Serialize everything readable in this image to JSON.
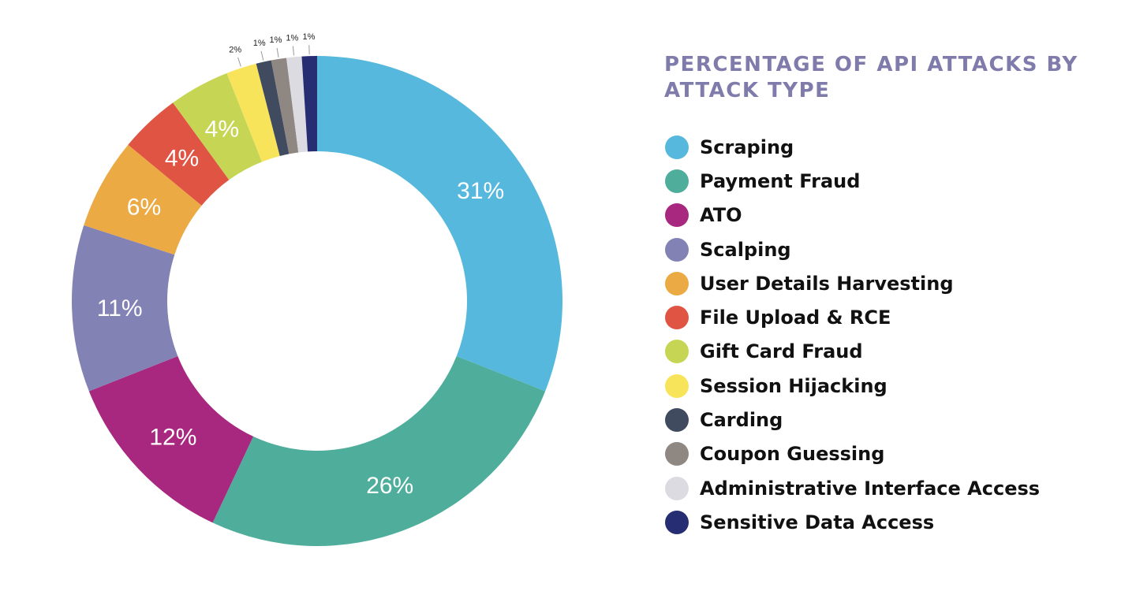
{
  "chart_data": {
    "type": "pie",
    "donut": true,
    "title": "PERCENTAGE OF API ATTACKS BY ATTACK TYPE",
    "legend": "right",
    "categories": [
      "Scraping",
      "Payment Fraud",
      "ATO",
      "Scalping",
      "User Details Harvesting",
      "File Upload & RCE",
      "Gift Card Fraud",
      "Session Hijacking",
      "Carding",
      "Coupon Guessing",
      "Administrative Interface Access",
      "Sensitive Data Access"
    ],
    "values": [
      31,
      26,
      12,
      11,
      6,
      4,
      4,
      2,
      1,
      1,
      1,
      1
    ],
    "value_labels": [
      "31%",
      "26%",
      "12%",
      "11%",
      "6%",
      "4%",
      "4%",
      "2%",
      "1%",
      "1%",
      "1%",
      "1%"
    ],
    "colors": [
      "#55b8dc",
      "#4fae9b",
      "#a8277f",
      "#8282b5",
      "#ebaa44",
      "#e05444",
      "#c6d654",
      "#f8e45a",
      "#414b5f",
      "#8f8782",
      "#dbdbe1",
      "#272d73"
    ]
  }
}
